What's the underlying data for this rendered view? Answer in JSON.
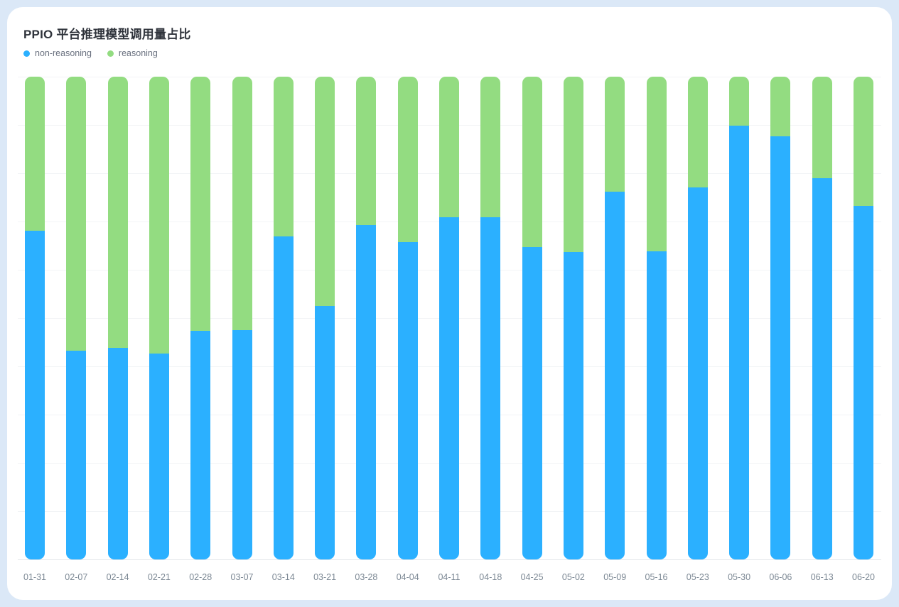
{
  "page": {
    "background_color": "#dbe8f7",
    "card_background": "#ffffff"
  },
  "header": {
    "title": "PPIO 平台推理模型调用量占比"
  },
  "legend": {
    "items": [
      {
        "label": "non-reasoning",
        "color": "#2bb0ff"
      },
      {
        "label": "reasoning",
        "color": "#93dc81"
      }
    ]
  },
  "chart_data": {
    "type": "bar",
    "stacked": true,
    "unit": "percent",
    "title": "PPIO 平台推理模型调用量占比",
    "xlabel": "",
    "ylabel": "",
    "ylim": [
      0,
      100
    ],
    "grid": true,
    "gridline_interval_percent": 10,
    "legend_position": "top-left",
    "categories": [
      "01-31",
      "02-07",
      "02-14",
      "02-21",
      "02-28",
      "03-07",
      "03-14",
      "03-21",
      "03-28",
      "04-04",
      "04-11",
      "04-18",
      "04-25",
      "05-02",
      "05-09",
      "05-16",
      "05-23",
      "05-30",
      "06-06",
      "06-13",
      "06-20"
    ],
    "series": [
      {
        "name": "non-reasoning",
        "color": "#2bb0ff",
        "values": [
          68.1,
          43.2,
          43.8,
          42.6,
          47.4,
          47.5,
          66.9,
          52.5,
          69.3,
          65.7,
          70.9,
          70.9,
          64.7,
          63.7,
          76.2,
          63.8,
          77.1,
          89.9,
          87.6,
          79.0,
          73.2
        ]
      },
      {
        "name": "reasoning",
        "color": "#93dc81",
        "values": [
          31.9,
          56.8,
          56.2,
          57.4,
          52.6,
          52.5,
          33.1,
          47.5,
          30.7,
          34.3,
          29.1,
          29.1,
          35.3,
          36.3,
          23.8,
          36.2,
          22.9,
          10.1,
          12.4,
          21.0,
          26.8
        ]
      }
    ]
  }
}
